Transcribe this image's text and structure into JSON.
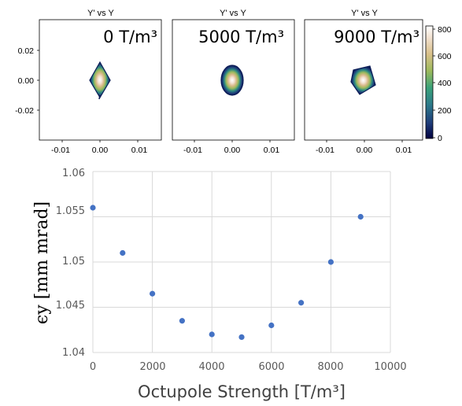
{
  "chart_data": [
    {
      "type": "heatmap",
      "title": "Y' vs Y",
      "label": "0 T/m³",
      "x_ticks": [
        "-0.01",
        "0.00",
        "0.01"
      ],
      "y_ticks": [
        "0.02",
        "0.00",
        "-0.02"
      ],
      "x_range": [
        -0.016,
        0.016
      ],
      "y_range": [
        -0.034,
        0.034
      ],
      "beam_shape": "diamond"
    },
    {
      "type": "heatmap",
      "title": "Y' vs Y",
      "label": "5000 T/m³",
      "x_ticks": [
        "-0.01",
        "0.00",
        "0.01"
      ],
      "x_range": [
        -0.016,
        0.016
      ],
      "y_range": [
        -0.034,
        0.034
      ],
      "beam_shape": "round"
    },
    {
      "type": "heatmap",
      "title": "Y' vs Y",
      "label": "9000 T/m³",
      "x_ticks": [
        "-0.01",
        "0.00",
        "0.01"
      ],
      "x_range": [
        -0.016,
        0.016
      ],
      "y_range": [
        -0.034,
        0.034
      ],
      "beam_shape": "square",
      "colorbar_ticks": [
        "800",
        "600",
        "400",
        "200",
        "0"
      ],
      "colorbar_range": [
        0,
        850
      ],
      "colormap": [
        "#000040",
        "#1f3d7a",
        "#2c7a8a",
        "#3aa27a",
        "#9cba5c",
        "#d9c08a",
        "#f2e2d2",
        "#ffffff"
      ]
    },
    {
      "type": "scatter",
      "xlabel": "Octupole Strength [T/m³]",
      "ylabel": "ϵy [mm mrad]",
      "x": [
        0,
        1000,
        2000,
        3000,
        4000,
        5000,
        6000,
        7000,
        8000,
        9000
      ],
      "y": [
        1.056,
        1.051,
        1.0465,
        1.0435,
        1.042,
        1.0417,
        1.043,
        1.0455,
        1.05,
        1.055
      ],
      "xlim": [
        0,
        10000
      ],
      "ylim": [
        1.04,
        1.06
      ],
      "x_ticks": [
        "0",
        "2000",
        "4000",
        "6000",
        "8000",
        "10000"
      ],
      "y_ticks": [
        "1.06",
        "1.055",
        "1.05",
        "1.045",
        "1.04"
      ],
      "grid": true,
      "marker_color": "#4472c4"
    }
  ]
}
